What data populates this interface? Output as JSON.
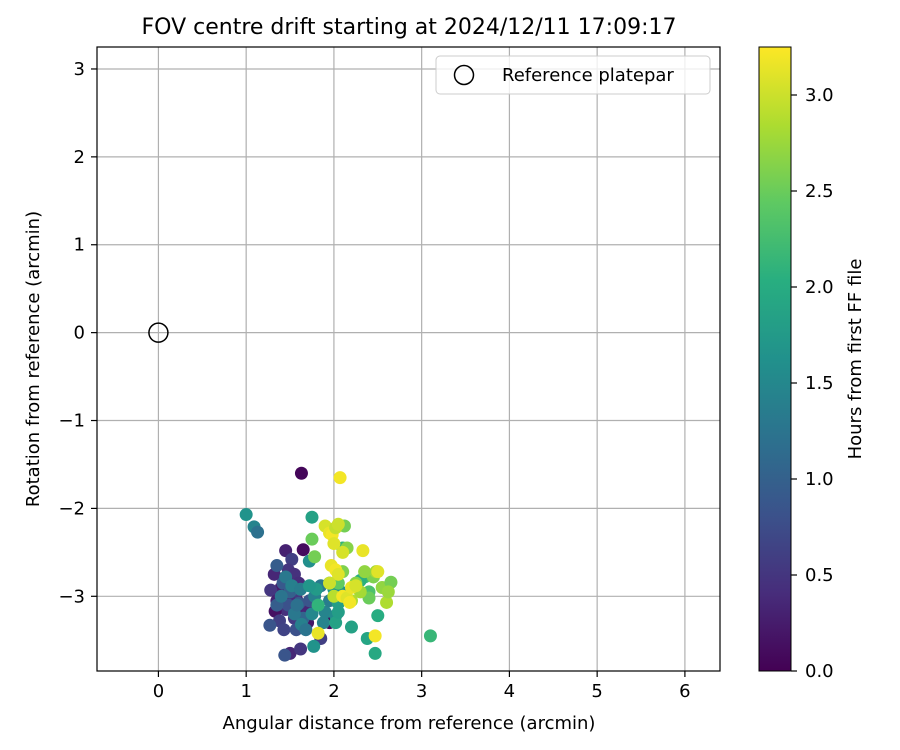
{
  "chart_data": {
    "type": "scatter",
    "title": "FOV centre drift starting at 2024/12/11 17:09:17",
    "xlabel": "Angular distance from reference (arcmin)",
    "ylabel": "Rotation from reference (arcmin)",
    "xlim": [
      -0.7,
      6.4
    ],
    "ylim": [
      -3.85,
      3.25
    ],
    "xticks": [
      0,
      1,
      2,
      3,
      4,
      5,
      6
    ],
    "yticks": [
      -3,
      -2,
      -1,
      0,
      1,
      2,
      3
    ],
    "grid": true,
    "legend": {
      "position": "top-right",
      "entries": [
        "Reference platepar"
      ]
    },
    "reference_point": {
      "x": 0,
      "y": 0,
      "label": "Reference platepar"
    },
    "colorbar": {
      "label": "Hours from first FF file",
      "colormap": "viridis",
      "range": [
        0,
        3.25
      ],
      "ticks": [
        "0.0",
        "0.5",
        "1.0",
        "1.5",
        "2.0",
        "2.5",
        "3.0"
      ]
    },
    "points": [
      {
        "x": 1.63,
        "y": -1.6,
        "c": 0.05
      },
      {
        "x": 1.45,
        "y": -2.48,
        "c": 0.3
      },
      {
        "x": 1.65,
        "y": -2.47,
        "c": 0.1
      },
      {
        "x": 1.52,
        "y": -2.58,
        "c": 0.6
      },
      {
        "x": 1.32,
        "y": -2.75,
        "c": 0.35
      },
      {
        "x": 1.48,
        "y": -2.7,
        "c": 0.5
      },
      {
        "x": 1.55,
        "y": -2.75,
        "c": 0.45
      },
      {
        "x": 1.6,
        "y": -2.85,
        "c": 0.4
      },
      {
        "x": 1.4,
        "y": -2.9,
        "c": 0.25
      },
      {
        "x": 1.28,
        "y": -2.93,
        "c": 0.5
      },
      {
        "x": 1.35,
        "y": -3.05,
        "c": 0.3
      },
      {
        "x": 1.58,
        "y": -3.05,
        "c": 0.2
      },
      {
        "x": 1.45,
        "y": -3.15,
        "c": 0.45
      },
      {
        "x": 1.33,
        "y": -3.17,
        "c": 0.15
      },
      {
        "x": 1.55,
        "y": -3.25,
        "c": 0.55
      },
      {
        "x": 1.68,
        "y": -3.15,
        "c": 0.35
      },
      {
        "x": 1.95,
        "y": -3.3,
        "c": 0.05
      },
      {
        "x": 1.5,
        "y": -3.65,
        "c": 0.35
      },
      {
        "x": 1.62,
        "y": -3.6,
        "c": 0.5
      },
      {
        "x": 1.38,
        "y": -3.28,
        "c": 0.6
      },
      {
        "x": 1.58,
        "y": -2.95,
        "c": 0.55
      },
      {
        "x": 1.48,
        "y": -3.0,
        "c": 0.4
      },
      {
        "x": 1.7,
        "y": -3.3,
        "c": 0.2
      },
      {
        "x": 1.85,
        "y": -3.48,
        "c": 0.6
      },
      {
        "x": 1.43,
        "y": -3.38,
        "c": 0.65
      },
      {
        "x": 1.27,
        "y": -3.33,
        "c": 0.85
      },
      {
        "x": 1.44,
        "y": -3.67,
        "c": 0.85
      },
      {
        "x": 1.35,
        "y": -2.65,
        "c": 0.95
      },
      {
        "x": 1.42,
        "y": -2.85,
        "c": 0.9
      },
      {
        "x": 1.5,
        "y": -2.95,
        "c": 1.0
      },
      {
        "x": 1.48,
        "y": -3.1,
        "c": 0.8
      },
      {
        "x": 1.6,
        "y": -3.08,
        "c": 0.9
      },
      {
        "x": 1.57,
        "y": -3.38,
        "c": 0.8
      },
      {
        "x": 1.65,
        "y": -3.25,
        "c": 1.05
      },
      {
        "x": 1.72,
        "y": -3.05,
        "c": 0.85
      },
      {
        "x": 1.35,
        "y": -3.1,
        "c": 0.95
      },
      {
        "x": 1.0,
        "y": -2.07,
        "c": 1.65
      },
      {
        "x": 1.09,
        "y": -2.21,
        "c": 1.45
      },
      {
        "x": 1.13,
        "y": -2.27,
        "c": 1.2
      },
      {
        "x": 1.45,
        "y": -2.78,
        "c": 1.3
      },
      {
        "x": 1.52,
        "y": -2.88,
        "c": 1.4
      },
      {
        "x": 1.62,
        "y": -2.92,
        "c": 1.35
      },
      {
        "x": 1.4,
        "y": -3.0,
        "c": 1.25
      },
      {
        "x": 1.55,
        "y": -3.2,
        "c": 1.3
      },
      {
        "x": 1.63,
        "y": -3.32,
        "c": 1.4
      },
      {
        "x": 1.78,
        "y": -3.0,
        "c": 1.4
      },
      {
        "x": 1.85,
        "y": -2.88,
        "c": 1.3
      },
      {
        "x": 1.9,
        "y": -3.18,
        "c": 1.45
      },
      {
        "x": 1.95,
        "y": -3.05,
        "c": 1.35
      },
      {
        "x": 1.68,
        "y": -3.38,
        "c": 1.25
      },
      {
        "x": 1.75,
        "y": -3.2,
        "c": 1.5
      },
      {
        "x": 2.02,
        "y": -3.22,
        "c": 1.55
      },
      {
        "x": 1.88,
        "y": -3.3,
        "c": 1.45
      },
      {
        "x": 1.58,
        "y": -3.1,
        "c": 1.2
      },
      {
        "x": 1.75,
        "y": -2.1,
        "c": 1.85
      },
      {
        "x": 1.72,
        "y": -2.6,
        "c": 1.6
      },
      {
        "x": 1.8,
        "y": -2.92,
        "c": 1.75
      },
      {
        "x": 2.0,
        "y": -2.92,
        "c": 1.75
      },
      {
        "x": 2.05,
        "y": -3.08,
        "c": 1.8
      },
      {
        "x": 1.72,
        "y": -2.88,
        "c": 1.7
      },
      {
        "x": 2.08,
        "y": -2.95,
        "c": 1.65
      },
      {
        "x": 1.77,
        "y": -3.57,
        "c": 1.65
      },
      {
        "x": 2.02,
        "y": -3.3,
        "c": 1.85
      },
      {
        "x": 2.05,
        "y": -3.18,
        "c": 1.8
      },
      {
        "x": 2.2,
        "y": -3.35,
        "c": 1.85
      },
      {
        "x": 2.38,
        "y": -3.48,
        "c": 1.9
      },
      {
        "x": 2.47,
        "y": -3.65,
        "c": 1.95
      },
      {
        "x": 2.5,
        "y": -3.22,
        "c": 2.0
      },
      {
        "x": 3.1,
        "y": -3.45,
        "c": 2.15
      },
      {
        "x": 1.95,
        "y": -2.85,
        "c": 1.9
      },
      {
        "x": 2.1,
        "y": -2.45,
        "c": 2.1
      },
      {
        "x": 2.35,
        "y": -2.78,
        "c": 2.2
      },
      {
        "x": 2.3,
        "y": -2.82,
        "c": 2.05
      },
      {
        "x": 2.4,
        "y": -2.95,
        "c": 2.3
      },
      {
        "x": 1.82,
        "y": -3.1,
        "c": 2.1
      },
      {
        "x": 1.75,
        "y": -2.35,
        "c": 2.5
      },
      {
        "x": 1.78,
        "y": -2.55,
        "c": 2.55
      },
      {
        "x": 2.12,
        "y": -2.2,
        "c": 2.55
      },
      {
        "x": 2.15,
        "y": -2.45,
        "c": 2.65
      },
      {
        "x": 2.1,
        "y": -2.72,
        "c": 2.6
      },
      {
        "x": 2.05,
        "y": -2.85,
        "c": 2.45
      },
      {
        "x": 2.4,
        "y": -3.02,
        "c": 2.5
      },
      {
        "x": 2.45,
        "y": -2.78,
        "c": 2.6
      },
      {
        "x": 2.55,
        "y": -2.9,
        "c": 2.7
      },
      {
        "x": 2.6,
        "y": -3.07,
        "c": 2.85
      },
      {
        "x": 2.65,
        "y": -2.84,
        "c": 2.55
      },
      {
        "x": 2.62,
        "y": -2.95,
        "c": 2.75
      },
      {
        "x": 2.48,
        "y": -2.72,
        "c": 2.8
      },
      {
        "x": 2.35,
        "y": -2.72,
        "c": 2.7
      },
      {
        "x": 2.25,
        "y": -2.85,
        "c": 2.65
      },
      {
        "x": 2.3,
        "y": -2.95,
        "c": 2.8
      },
      {
        "x": 2.2,
        "y": -3.05,
        "c": 2.85
      },
      {
        "x": 2.0,
        "y": -3.0,
        "c": 2.9
      },
      {
        "x": 1.9,
        "y": -2.2,
        "c": 3.05
      },
      {
        "x": 1.95,
        "y": -2.28,
        "c": 3.15
      },
      {
        "x": 1.98,
        "y": -2.3,
        "c": 3.2
      },
      {
        "x": 2.0,
        "y": -2.4,
        "c": 3.1
      },
      {
        "x": 2.02,
        "y": -2.22,
        "c": 2.95
      },
      {
        "x": 2.05,
        "y": -2.18,
        "c": 3.0
      },
      {
        "x": 2.07,
        "y": -1.65,
        "c": 3.2
      },
      {
        "x": 2.1,
        "y": -2.5,
        "c": 3.05
      },
      {
        "x": 2.33,
        "y": -2.48,
        "c": 3.15
      },
      {
        "x": 1.97,
        "y": -2.65,
        "c": 3.15
      },
      {
        "x": 2.02,
        "y": -2.7,
        "c": 3.2
      },
      {
        "x": 2.05,
        "y": -2.75,
        "c": 3.1
      },
      {
        "x": 1.95,
        "y": -2.85,
        "c": 3.0
      },
      {
        "x": 2.1,
        "y": -3.0,
        "c": 3.2
      },
      {
        "x": 2.15,
        "y": -3.02,
        "c": 3.1
      },
      {
        "x": 2.2,
        "y": -2.9,
        "c": 3.15
      },
      {
        "x": 2.25,
        "y": -2.88,
        "c": 3.05
      },
      {
        "x": 2.5,
        "y": -2.72,
        "c": 3.1
      },
      {
        "x": 1.82,
        "y": -3.42,
        "c": 3.15
      },
      {
        "x": 2.18,
        "y": -3.07,
        "c": 3.2
      },
      {
        "x": 2.47,
        "y": -3.45,
        "c": 3.2
      }
    ]
  }
}
